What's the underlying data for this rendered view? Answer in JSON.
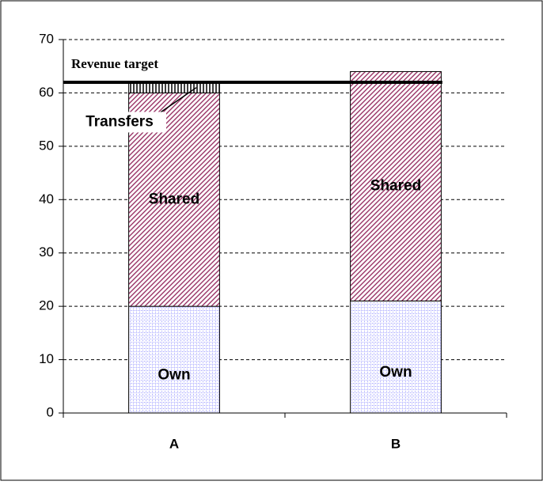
{
  "chart_data": {
    "type": "stacked-bar",
    "categories": [
      "A",
      "B"
    ],
    "series": [
      {
        "name": "Own",
        "color": "#9999ff",
        "values": [
          20,
          21
        ]
      },
      {
        "name": "Shared",
        "color": "#993366",
        "values": [
          40,
          43
        ]
      },
      {
        "name": "Transfers",
        "color": "#000000",
        "values": [
          2,
          0
        ]
      }
    ],
    "target": {
      "label": "Revenue target",
      "value": 62
    },
    "ylim": [
      0,
      70
    ],
    "yticks": [
      0,
      10,
      20,
      30,
      40,
      50,
      60,
      70
    ],
    "grid": true
  }
}
